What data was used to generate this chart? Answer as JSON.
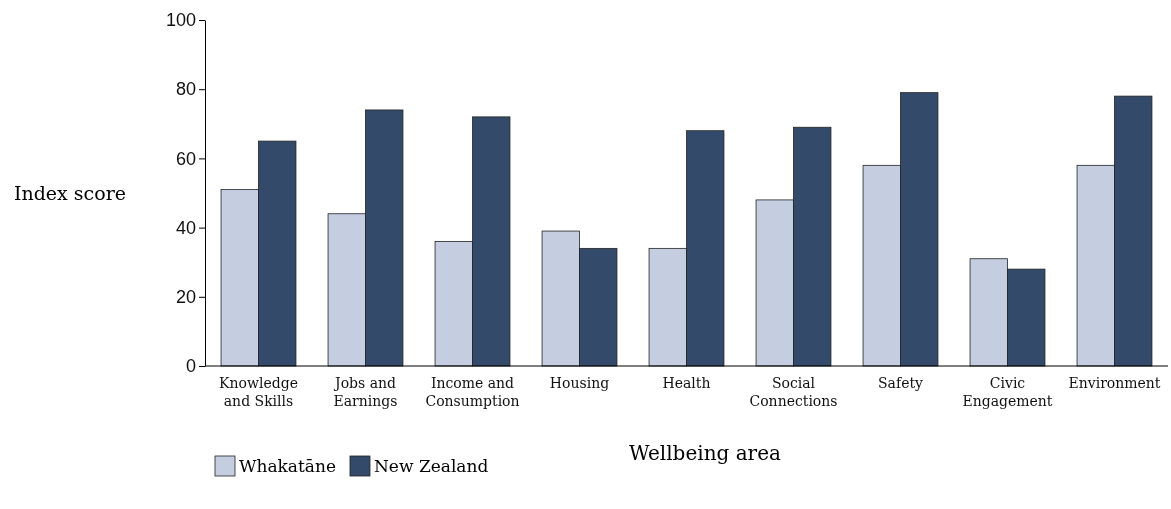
{
  "chart_data": {
    "type": "bar",
    "xlabel": "Wellbeing area",
    "ylabel": "Index score",
    "categories": [
      "Knowledge and Skills",
      "Jobs and Earnings",
      "Income and Consumption",
      "Housing",
      "Health",
      "Social Connections",
      "Safety",
      "Civic Engagement",
      "Environment"
    ],
    "series": [
      {
        "name": "Whakatāne",
        "color": "#c5cde0",
        "values": [
          51,
          44,
          36,
          39,
          34,
          48,
          58,
          31,
          58
        ]
      },
      {
        "name": "New Zealand",
        "color": "#344a6a",
        "values": [
          65,
          74,
          72,
          34,
          68,
          69,
          79,
          28,
          78
        ]
      }
    ],
    "ylim": [
      0,
      100
    ],
    "yticks": [
      0,
      20,
      40,
      60,
      80,
      100
    ],
    "grid": false,
    "legend": "bottom left"
  }
}
